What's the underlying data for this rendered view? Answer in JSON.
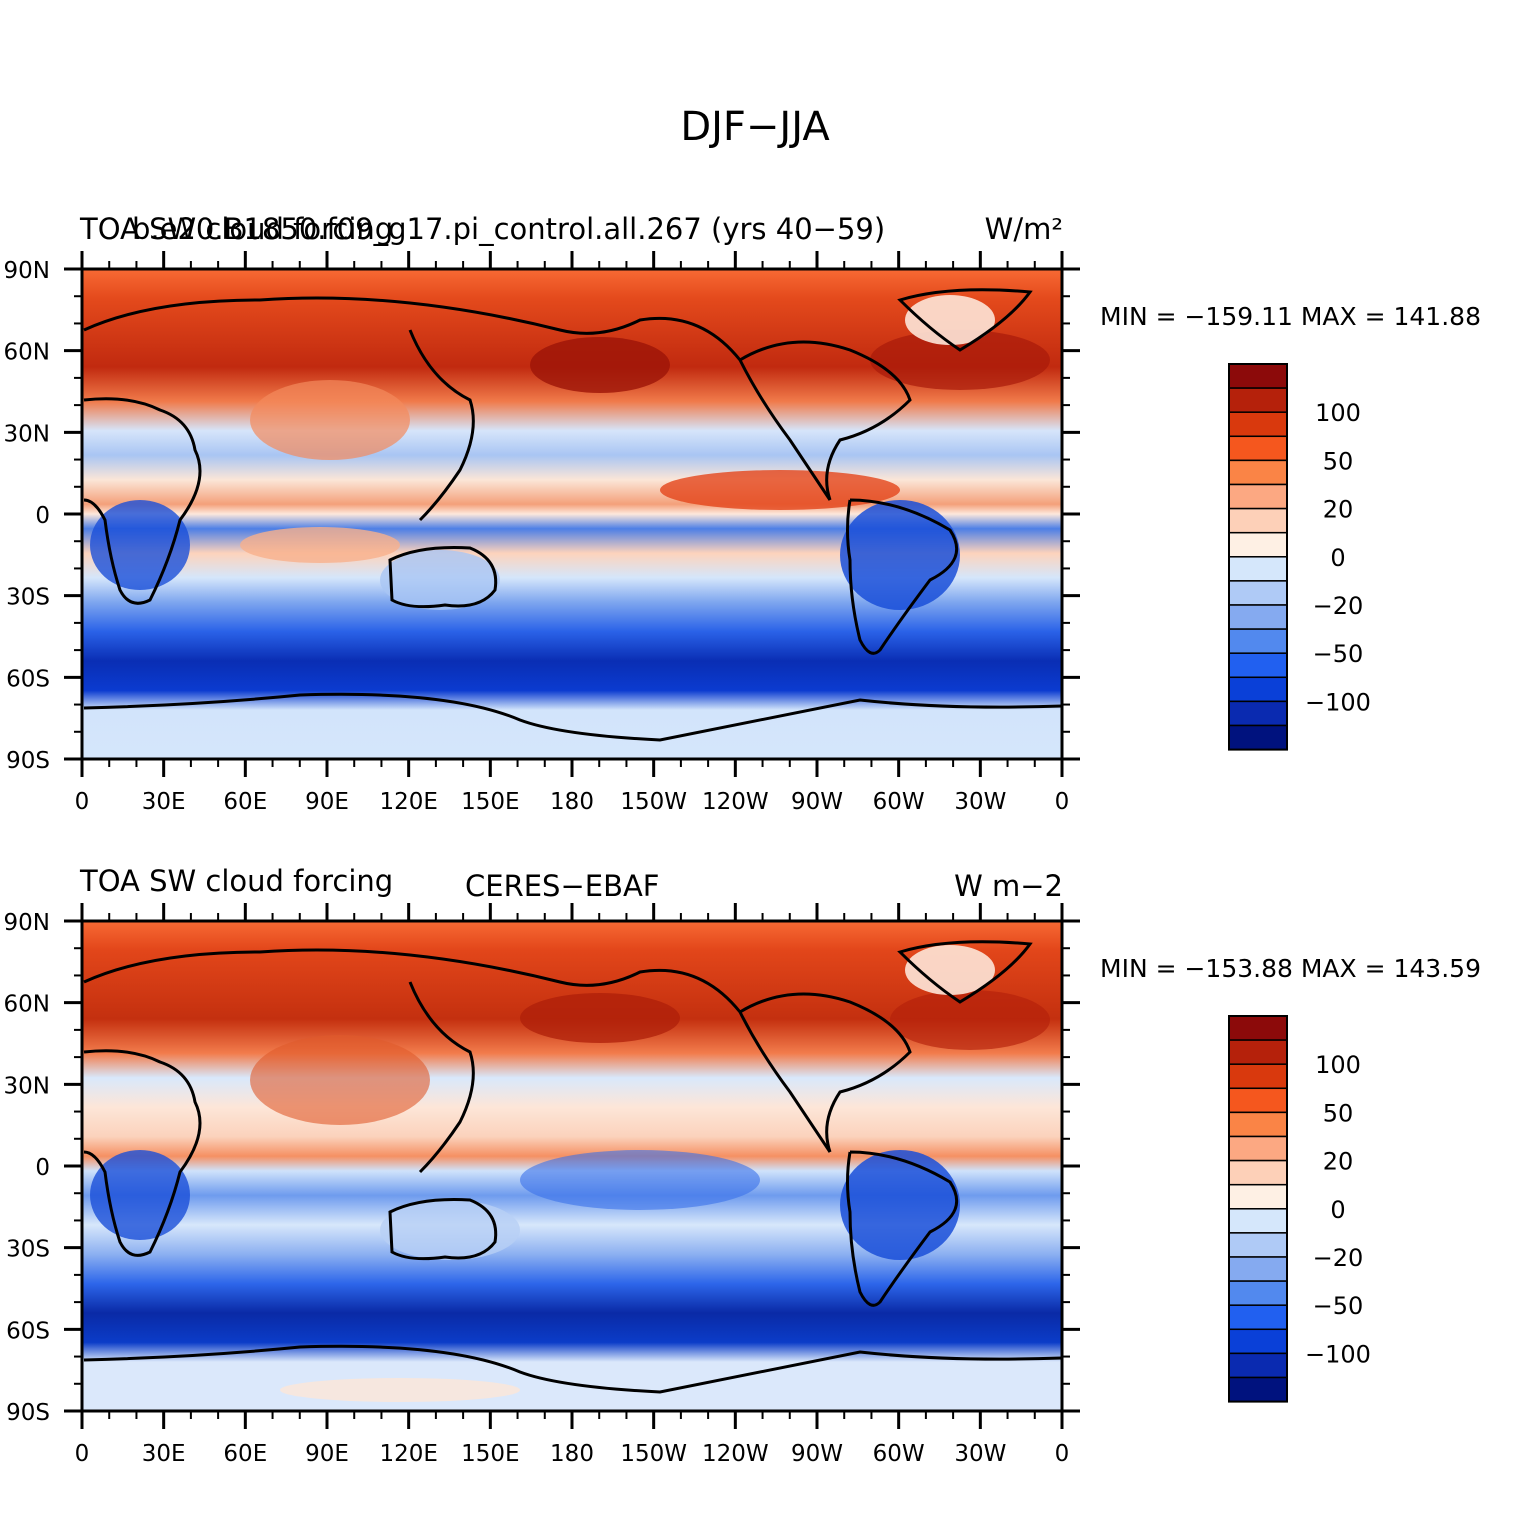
{
  "figure": {
    "title": "DJF−JJA"
  },
  "panels": [
    {
      "left_label": "TOA SW cloud forcing",
      "center_label": "b.e20.B1850.f09_g17.pi_control.all.267 (yrs 40−59)",
      "right_label": "W/m²",
      "min_max": "MIN = −159.11  MAX = 141.88"
    },
    {
      "left_label": "TOA SW cloud forcing",
      "center_label": "CERES−EBAF",
      "right_label": "W m−2",
      "min_max": "MIN = −153.88  MAX = 143.59"
    }
  ],
  "axes": {
    "lat_ticks": [
      "90N",
      "60N",
      "30N",
      "0",
      "30S",
      "60S",
      "90S"
    ],
    "lon_ticks": [
      "0",
      "30E",
      "60E",
      "90E",
      "120E",
      "150E",
      "180",
      "150W",
      "120W",
      "90W",
      "60W",
      "30W",
      "0"
    ]
  },
  "colorbar": {
    "colors": [
      "#8c0a0a",
      "#b5210b",
      "#d9390d",
      "#f5571e",
      "#fa8446",
      "#fca882",
      "#fdd0b8",
      "#fef0e4",
      "#d5e7fb",
      "#afcaf6",
      "#85aaf0",
      "#5289ee",
      "#2160f0",
      "#0a40d8",
      "#0a2ab0",
      "#00127e"
    ],
    "labels": [
      "100",
      "50",
      "20",
      "0",
      "−20",
      "−50",
      "−100"
    ]
  }
}
